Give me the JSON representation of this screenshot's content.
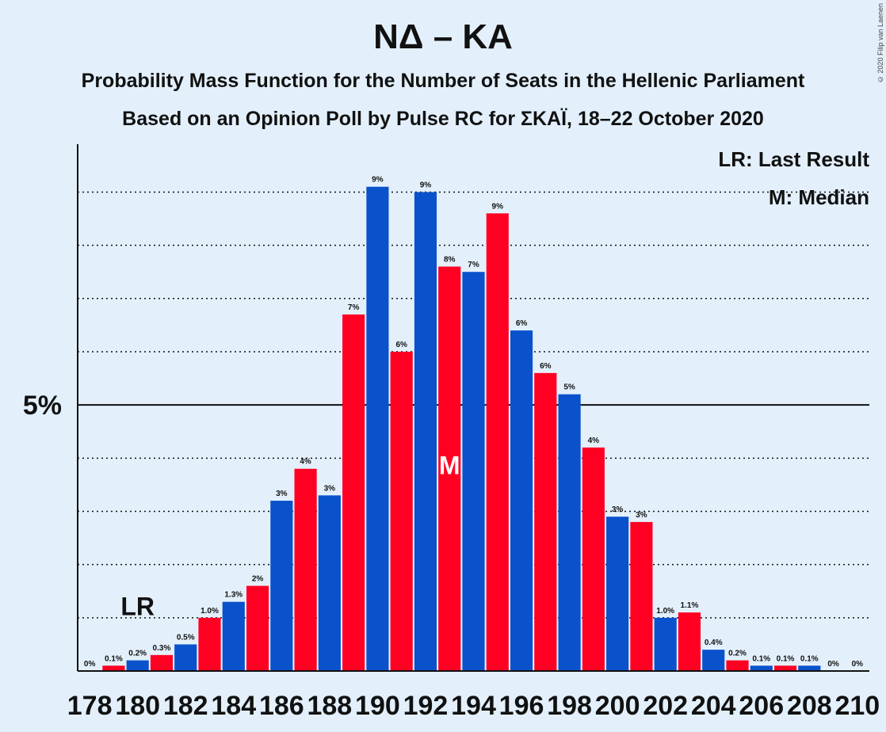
{
  "chart_data": {
    "type": "bar",
    "title": "ΝΔ – ΚΑ",
    "subtitle_1": "Probability Mass Function for the Number of Seats in the Hellenic Parliament",
    "subtitle_2": "Based on an Opinion Poll by Pulse RC for ΣΚΑΪ, 18–22 October 2020",
    "copyright": "© 2020 Filip van Laenen",
    "x": [
      178,
      179,
      180,
      181,
      182,
      183,
      184,
      185,
      186,
      187,
      188,
      189,
      190,
      191,
      192,
      193,
      194,
      195,
      196,
      197,
      198,
      199,
      200,
      201,
      202,
      203,
      204,
      205,
      206,
      207,
      208,
      209,
      210
    ],
    "values": [
      0.0,
      0.1,
      0.2,
      0.3,
      0.5,
      1.0,
      1.3,
      1.6,
      3.2,
      3.8,
      3.3,
      6.7,
      9.1,
      6.0,
      9.0,
      7.6,
      7.5,
      8.6,
      6.4,
      5.6,
      5.2,
      4.2,
      2.9,
      2.8,
      1.0,
      1.1,
      0.4,
      0.2,
      0.1,
      0.1,
      0.1,
      0.0,
      0.0
    ],
    "data_labels": [
      "0%",
      "0.1%",
      "0.2%",
      "0.3%",
      "0.5%",
      "1.0%",
      "1.3%",
      "2%",
      "3%",
      "4%",
      "3%",
      "7%",
      "9%",
      "6%",
      "9%",
      "8%",
      "7%",
      "9%",
      "6%",
      "6%",
      "5%",
      "4%",
      "3%",
      "3%",
      "1.0%",
      "1.1%",
      "0.4%",
      "0.2%",
      "0.1%",
      "0.1%",
      "0.1%",
      "0%",
      "0%"
    ],
    "colors": {
      "blue": "#0a52cc",
      "red": "#ff0022"
    },
    "color_pattern": [
      "blue",
      "red"
    ],
    "xtick_labels": [
      "178",
      "180",
      "182",
      "184",
      "186",
      "188",
      "190",
      "192",
      "194",
      "196",
      "198",
      "200",
      "202",
      "204",
      "206",
      "208",
      "210"
    ],
    "ytick": {
      "value": 5,
      "label": "5%"
    },
    "ylim": [
      0,
      9.9
    ],
    "gridlines": [
      1,
      2,
      3,
      4,
      5,
      6,
      7,
      8,
      9
    ],
    "last_result": {
      "seat": 180,
      "label": "LR"
    },
    "median": {
      "seat": 193,
      "label": "M"
    },
    "legend": [
      "LR: Last Result",
      "M: Median"
    ],
    "legend_position": "top-right"
  }
}
